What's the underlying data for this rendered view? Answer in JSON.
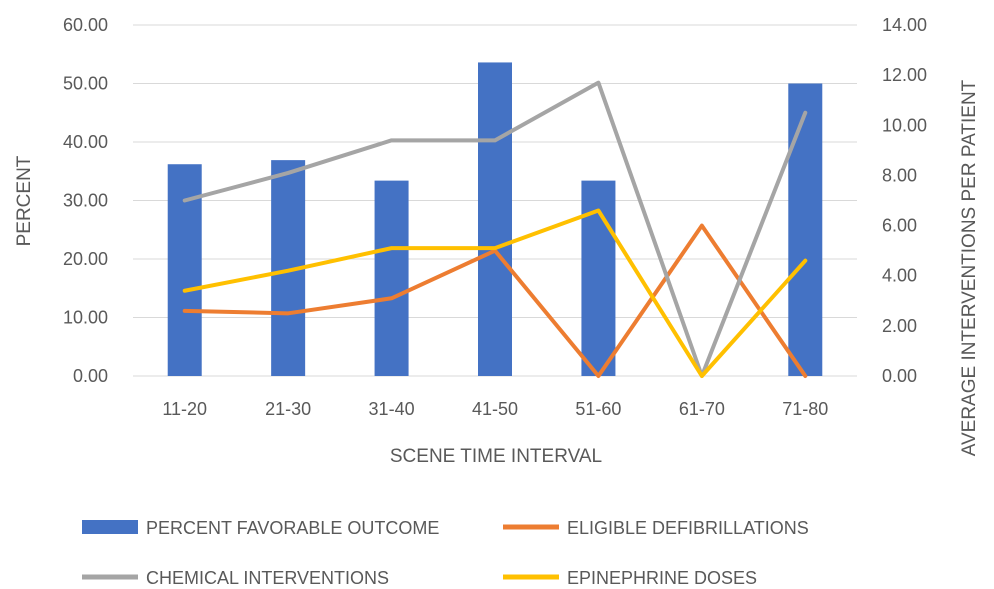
{
  "chart_data": {
    "type": "bar+line",
    "title": "",
    "xlabel": "SCENE TIME INTERVAL",
    "ylabel": "PERCENT",
    "y2label": "AVERAGE  INTERVENTIONS  PER PATIENT",
    "categories": [
      "11-20",
      "21-30",
      "31-40",
      "41-50",
      "51-60",
      "61-70",
      "71-80"
    ],
    "ylim": [
      0,
      60
    ],
    "y2lim": [
      0,
      14
    ],
    "y_ticks": [
      "0.00",
      "10.00",
      "20.00",
      "30.00",
      "40.00",
      "50.00",
      "60.00"
    ],
    "y2_ticks": [
      "0.00",
      "2.00",
      "4.00",
      "6.00",
      "8.00",
      "10.00",
      "12.00",
      "14.00"
    ],
    "grid": true,
    "legend_position": "bottom",
    "series": [
      {
        "name": "PERCENT FAVORABLE OUTCOME",
        "kind": "bar",
        "axis": "left",
        "color": "#4472c4",
        "values": [
          36.2,
          36.9,
          33.4,
          53.6,
          33.4,
          0,
          50.0
        ]
      },
      {
        "name": "ELIGIBLE DEFIBRILLATIONS",
        "kind": "line",
        "axis": "right",
        "color": "#ed7d31",
        "values": [
          2.6,
          2.5,
          3.1,
          5.0,
          0.0,
          6.0,
          0.0
        ]
      },
      {
        "name": "CHEMICAL INTERVENTIONS",
        "kind": "line",
        "axis": "right",
        "color": "#a5a5a5",
        "values": [
          7.0,
          8.1,
          9.4,
          9.4,
          11.7,
          0.0,
          10.5
        ]
      },
      {
        "name": "EPINEPHRINE DOSES",
        "kind": "line",
        "axis": "right",
        "color": "#ffc000",
        "values": [
          3.4,
          4.2,
          5.1,
          5.1,
          6.6,
          0.0,
          4.6
        ]
      }
    ]
  }
}
